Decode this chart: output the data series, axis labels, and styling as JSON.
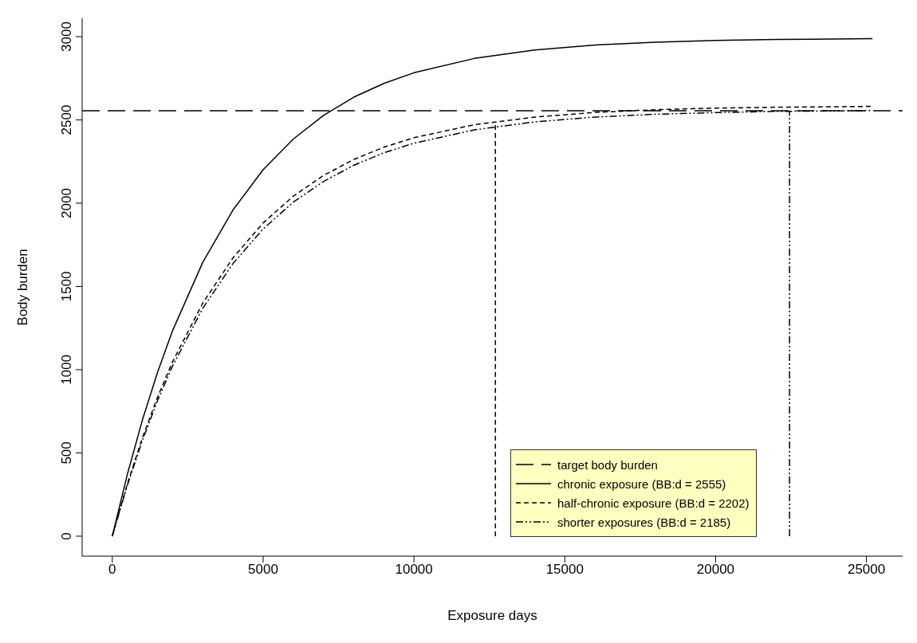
{
  "chart_data": {
    "type": "line",
    "xlabel": "Exposure days",
    "ylabel": "Body burden",
    "xlim": [
      -1000,
      26200
    ],
    "ylim": [
      -120,
      3110
    ],
    "xticks": [
      0,
      5000,
      10000,
      15000,
      20000,
      25000
    ],
    "yticks": [
      0,
      500,
      1000,
      1500,
      2000,
      2500,
      3000
    ],
    "grid": false,
    "legend": "bottom right",
    "marker": "none",
    "ref_lines": [
      {
        "axis": "y",
        "value": 2555,
        "label": "target body burden",
        "color": "#000000",
        "line_style": "dashed"
      }
    ],
    "series": [
      {
        "name": "chronic exposure (BB:d = 2555)",
        "color": "#000000",
        "line_style": "solid",
        "x": [
          0,
          500,
          1000,
          1500,
          2000,
          3000,
          4000,
          5000,
          6000,
          7000,
          8000,
          9000,
          10000,
          12000,
          14000,
          16000,
          18000,
          20000,
          22000,
          25200
        ],
        "values": [
          0,
          372,
          699,
          984,
          1235,
          1645,
          1959,
          2201,
          2385,
          2527,
          2636,
          2719,
          2783,
          2869,
          2920,
          2950,
          2967,
          2977,
          2983,
          2988
        ]
      },
      {
        "name": "half-chronic exposure (BB:d = 2202)",
        "color": "#000000",
        "line_style": "dashed",
        "x": [
          0,
          500,
          1000,
          1500,
          2000,
          3000,
          4000,
          5000,
          6000,
          7000,
          8000,
          9000,
          10000,
          12000,
          14000,
          16000,
          18000,
          20000,
          22000,
          25200
        ],
        "values": [
          0,
          315,
          592,
          835,
          1048,
          1400,
          1671,
          1881,
          2042,
          2166,
          2262,
          2336,
          2393,
          2471,
          2517,
          2545,
          2561,
          2571,
          2576,
          2581
        ]
      },
      {
        "name": "shorter exposures (BB:d = 2185)",
        "color": "#000000",
        "line_style": "dotted",
        "x": [
          0,
          500,
          1000,
          1500,
          2000,
          3000,
          4000,
          5000,
          6000,
          7000,
          8000,
          9000,
          10000,
          12000,
          14000,
          16000,
          18000,
          20000,
          22000,
          25200
        ],
        "values": [
          0,
          306,
          576,
          814,
          1023,
          1369,
          1637,
          1845,
          2006,
          2130,
          2227,
          2302,
          2360,
          2440,
          2488,
          2517,
          2534,
          2544,
          2551,
          2556
        ]
      },
      {
        "color": "#000000",
        "line_style": "dashed",
        "x": [
          12700,
          12700
        ],
        "values": [
          0,
          2488
        ]
      },
      {
        "color": "#000000",
        "line_style": "dotted",
        "x": [
          22450,
          22450
        ],
        "values": [
          0,
          2555
        ]
      }
    ]
  }
}
